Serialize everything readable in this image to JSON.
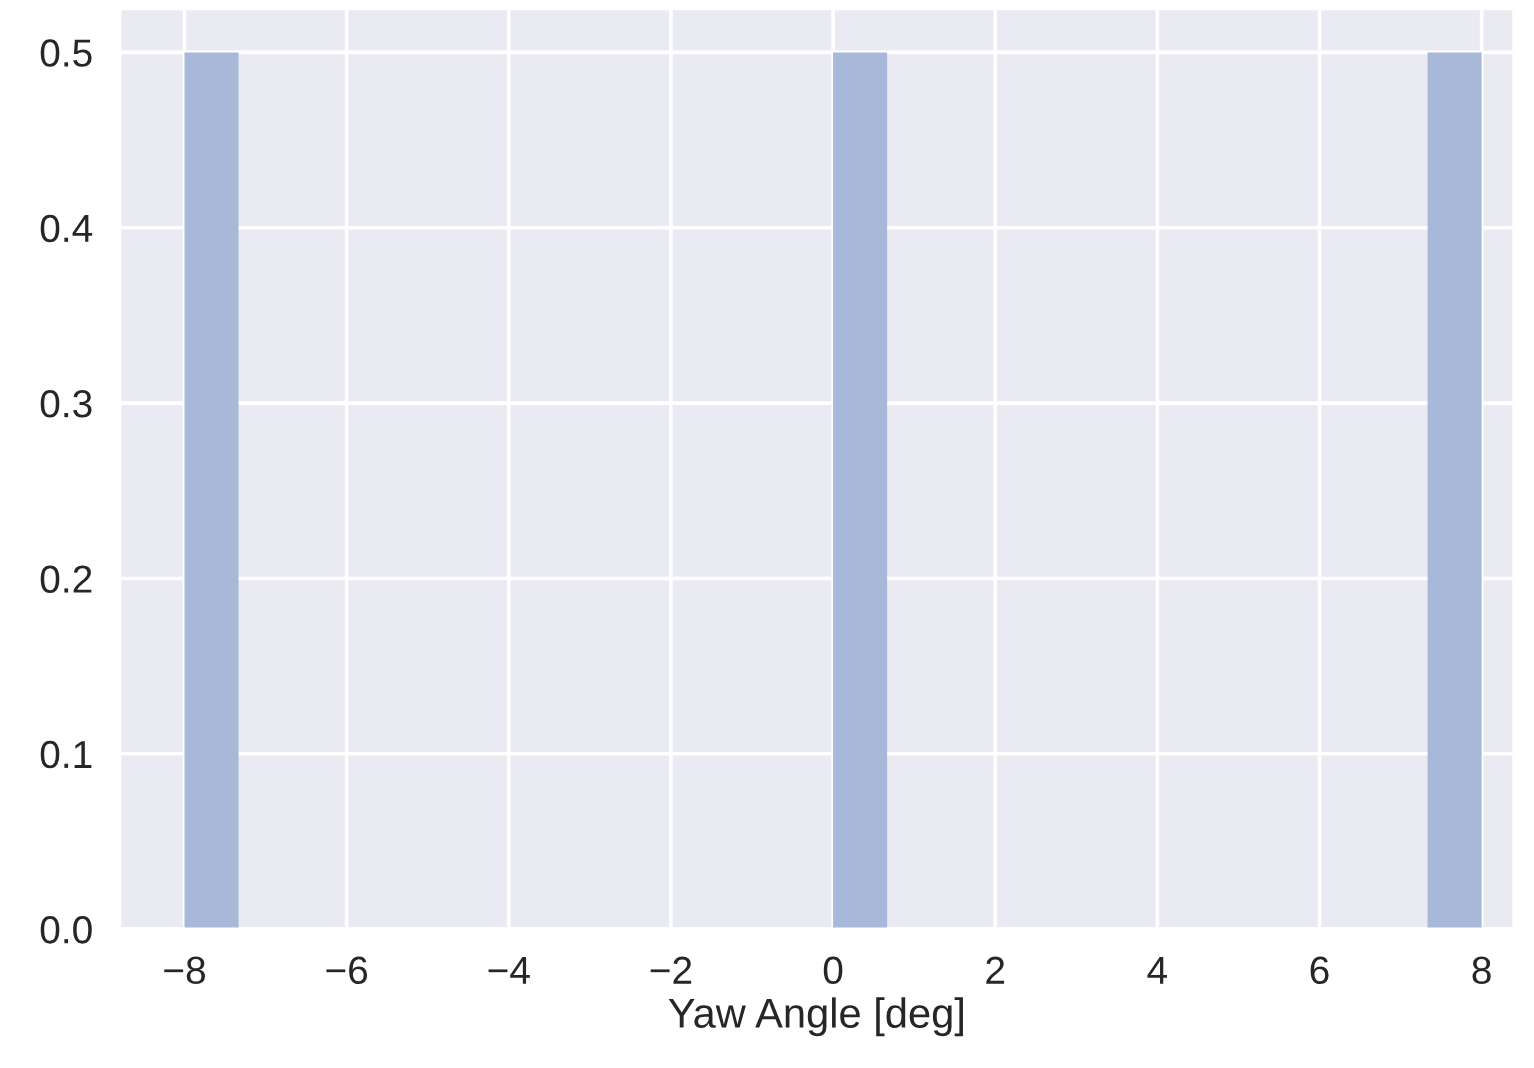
{
  "chart_data": {
    "type": "histogram",
    "xlabel": "Yaw Angle [deg]",
    "bins": [
      -8,
      -7.333,
      -6.667,
      -6,
      -5.333,
      -4.667,
      -4,
      -3.333,
      -2.667,
      -2,
      -1.333,
      -0.667,
      0,
      0.667,
      1.333,
      2,
      2.667,
      3.333,
      4,
      4.667,
      5.333,
      6,
      6.667,
      7.333,
      8
    ],
    "values": [
      0.5,
      0,
      0,
      0,
      0,
      0,
      0,
      0,
      0,
      0,
      0,
      0,
      0.5,
      0,
      0,
      0,
      0,
      0,
      0,
      0,
      0,
      0,
      0,
      0.5
    ],
    "color": "#a7b8d8",
    "xlim": [
      -8.8,
      8.4
    ],
    "xticks": [
      {
        "value": -8,
        "label": "−8"
      },
      {
        "value": -6,
        "label": "−6"
      },
      {
        "value": -4,
        "label": "−4"
      },
      {
        "value": -2,
        "label": "−2"
      },
      0,
      2,
      4,
      6,
      8
    ],
    "ylim": [
      0,
      0.525
    ],
    "yticks": [
      {
        "value": 0,
        "label": "0.0"
      },
      0.1,
      0.2,
      0.3,
      0.4,
      0.5
    ],
    "grid": true
  }
}
